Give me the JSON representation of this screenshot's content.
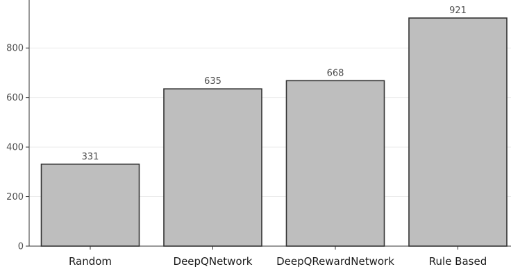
{
  "chart_data": {
    "type": "bar",
    "title": "",
    "xlabel": "",
    "ylabel": "",
    "categories": [
      "Random",
      "DeepQNetwork",
      "DeepQRewardNetwork",
      "Rule Based"
    ],
    "values": [
      331,
      635,
      668,
      921
    ],
    "data_labels": [
      "331",
      "635",
      "668",
      "921"
    ],
    "ylim": [
      0,
      921
    ],
    "y_ticks": [
      0,
      200,
      400,
      600,
      800
    ],
    "y_tick_labels": [
      "0",
      "200",
      "400",
      "600",
      "800"
    ],
    "grid": true,
    "legend": "none",
    "colors": {
      "bar_fill": "#bebebe",
      "bar_stroke": "#333333",
      "grid": "#ebebeb",
      "axis": "#333333"
    }
  }
}
